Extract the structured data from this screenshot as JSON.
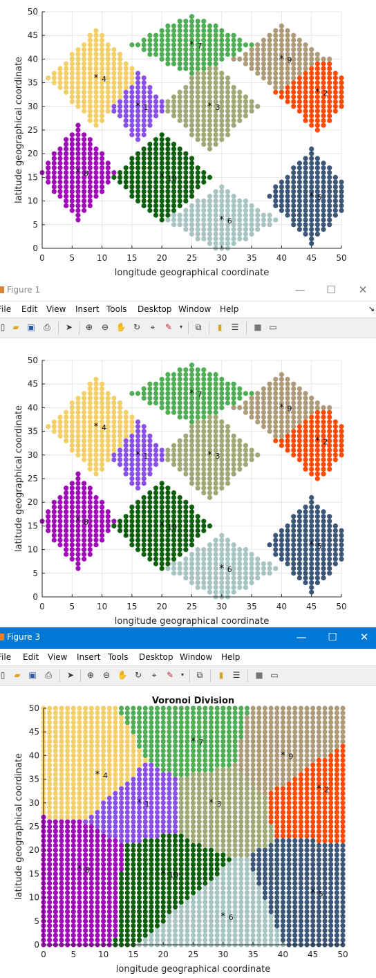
{
  "figures": [
    {
      "id": "top",
      "window_title": null,
      "plot_title": "",
      "xlabel": "longitude geographical coordinate",
      "ylabel": "latitude geographical coordinate"
    },
    {
      "id": "fig1",
      "window_title": "Figure 1",
      "plot_title": "",
      "xlabel": "longitude geographical coordinate",
      "ylabel": "latitude geographical coordinate"
    },
    {
      "id": "fig3",
      "window_title": "Figure 3",
      "plot_title": "Voronoi Division",
      "xlabel": "longitude geographical coordinate",
      "ylabel": "latitude geographical coordinate"
    }
  ],
  "menu": [
    "File",
    "Edit",
    "View",
    "Insert",
    "Tools",
    "Desktop",
    "Window",
    "Help"
  ],
  "toolbar_icons": [
    "new-figure-icon",
    "open-icon",
    "save-icon",
    "print-icon",
    "pointer-icon",
    "zoom-in-icon",
    "zoom-out-icon",
    "pan-icon",
    "rotate-icon",
    "data-cursor-icon",
    "brush-icon",
    "brush-dropdown-icon",
    "link-icon",
    "colorbar-icon",
    "legend-icon",
    "hide-tools-icon",
    "dock-icon"
  ],
  "colors": {
    "c1": "#8a4fe6",
    "c2": "#ff4a05",
    "c3": "#9fa877",
    "c4": "#f2cf68",
    "c5": "#3c5678",
    "c6": "#a7c4c0",
    "c7": "#4fad55",
    "c8": "#a009b8",
    "c9": "#ad9a79",
    "c10": "#0d5f0d",
    "title_active": "#0078d7"
  },
  "chart_data": [
    {
      "type": "scatter",
      "title": "",
      "xlabel": "longitude geographical coordinate",
      "ylabel": "latitude geographical coordinate",
      "xlim": [
        0,
        50
      ],
      "ylim": [
        0,
        50
      ],
      "xticks": [
        0,
        5,
        10,
        15,
        20,
        25,
        30,
        35,
        40,
        45,
        50
      ],
      "yticks": [
        0,
        5,
        10,
        15,
        20,
        25,
        30,
        35,
        40,
        45,
        50
      ],
      "grid": true,
      "series": [
        {
          "name": "1",
          "center": [
            16,
            30
          ]
        },
        {
          "name": "2",
          "center": [
            46,
            33
          ]
        },
        {
          "name": "3",
          "center": [
            28,
            30
          ]
        },
        {
          "name": "4",
          "center": [
            9,
            36
          ]
        },
        {
          "name": "5",
          "center": [
            45,
            11
          ]
        },
        {
          "name": "6",
          "center": [
            30,
            6
          ]
        },
        {
          "name": "7",
          "center": [
            25,
            43
          ]
        },
        {
          "name": "8",
          "center": [
            6,
            16
          ]
        },
        {
          "name": "9",
          "center": [
            40,
            40
          ]
        },
        {
          "name": "10",
          "center": [
            20,
            15
          ]
        }
      ]
    },
    {
      "type": "scatter",
      "title": "",
      "xlabel": "longitude geographical coordinate",
      "ylabel": "latitude geographical coordinate",
      "xlim": [
        0,
        50
      ],
      "ylim": [
        0,
        50
      ],
      "xticks": [
        0,
        5,
        10,
        15,
        20,
        25,
        30,
        35,
        40,
        45,
        50
      ],
      "yticks": [
        0,
        5,
        10,
        15,
        20,
        25,
        30,
        35,
        40,
        45,
        50
      ],
      "grid": true,
      "series": [
        {
          "name": "1",
          "center": [
            16,
            30
          ]
        },
        {
          "name": "2",
          "center": [
            46,
            33
          ]
        },
        {
          "name": "3",
          "center": [
            28,
            30
          ]
        },
        {
          "name": "4",
          "center": [
            9,
            36
          ]
        },
        {
          "name": "5",
          "center": [
            45,
            11
          ]
        },
        {
          "name": "6",
          "center": [
            30,
            6
          ]
        },
        {
          "name": "7",
          "center": [
            25,
            43
          ]
        },
        {
          "name": "8",
          "center": [
            6,
            16
          ]
        },
        {
          "name": "9",
          "center": [
            40,
            40
          ]
        },
        {
          "name": "10",
          "center": [
            20,
            15
          ]
        }
      ]
    },
    {
      "type": "scatter",
      "title": "Voronoi Division",
      "xlabel": "longitude geographical coordinate",
      "ylabel": "latitude geographical coordinate",
      "xlim": [
        0,
        50
      ],
      "ylim": [
        0,
        50
      ],
      "xticks": [
        0,
        5,
        10,
        15,
        20,
        25,
        30,
        35,
        40,
        45,
        50
      ],
      "yticks": [
        0,
        5,
        10,
        15,
        20,
        25,
        30,
        35,
        40,
        45,
        50
      ],
      "grid": false,
      "series": [
        {
          "name": "1",
          "center": [
            16,
            30
          ]
        },
        {
          "name": "2",
          "center": [
            46,
            33
          ]
        },
        {
          "name": "3",
          "center": [
            28,
            30
          ]
        },
        {
          "name": "4",
          "center": [
            9,
            36
          ]
        },
        {
          "name": "5",
          "center": [
            45,
            11
          ]
        },
        {
          "name": "6",
          "center": [
            30,
            6
          ]
        },
        {
          "name": "7",
          "center": [
            25,
            43
          ]
        },
        {
          "name": "8",
          "center": [
            6,
            16
          ]
        },
        {
          "name": "9",
          "center": [
            40,
            40
          ]
        },
        {
          "name": "10",
          "center": [
            20,
            15
          ]
        }
      ]
    }
  ]
}
